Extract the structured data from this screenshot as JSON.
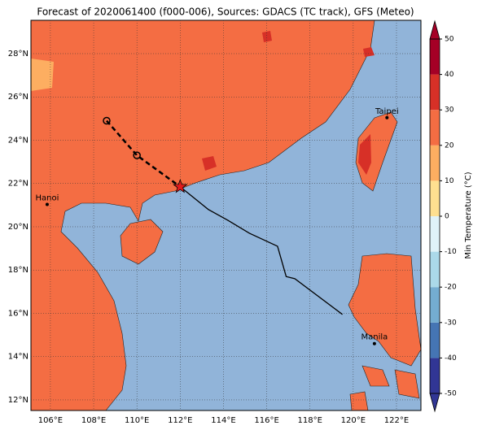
{
  "chart_data": {
    "type": "map",
    "title": "Forecast of 2020061400 (f000-006), Sources: GDACS (TC track), GFS (Meteo)",
    "xlim": [
      105.1,
      123.13
    ],
    "ylim": [
      11.51,
      29.54
    ],
    "xticks": [
      {
        "value": 106,
        "label": "106°E"
      },
      {
        "value": 108,
        "label": "108°E"
      },
      {
        "value": 110,
        "label": "110°E"
      },
      {
        "value": 112,
        "label": "112°E"
      },
      {
        "value": 114,
        "label": "114°E"
      },
      {
        "value": 116,
        "label": "116°E"
      },
      {
        "value": 118,
        "label": "118°E"
      },
      {
        "value": 120,
        "label": "120°E"
      },
      {
        "value": 122,
        "label": "122°E"
      }
    ],
    "yticks": [
      {
        "value": 12,
        "label": "12°N"
      },
      {
        "value": 14,
        "label": "14°N"
      },
      {
        "value": 16,
        "label": "16°N"
      },
      {
        "value": 18,
        "label": "18°N"
      },
      {
        "value": 20,
        "label": "20°N"
      },
      {
        "value": 22,
        "label": "22°N"
      },
      {
        "value": 24,
        "label": "24°N"
      },
      {
        "value": 26,
        "label": "26°N"
      },
      {
        "value": 28,
        "label": "28°N"
      }
    ],
    "grid": true,
    "colorbar": {
      "label": "Min Temperature (°C)",
      "lim": [
        -50,
        50
      ],
      "ticks": [
        -50,
        -40,
        -30,
        -20,
        -10,
        0,
        10,
        20,
        30,
        40,
        50
      ],
      "colors": [
        "#313695",
        "#4575b4",
        "#74add1",
        "#abd9e9",
        "#e0f3f8",
        "#fee090",
        "#fdae61",
        "#f46d43",
        "#d73027",
        "#a50026"
      ]
    },
    "cities": [
      {
        "name": "Hanoi",
        "lon": 105.85,
        "lat": 21.03
      },
      {
        "name": "Taipei",
        "lon": 121.56,
        "lat": 25.04
      },
      {
        "name": "Manila",
        "lon": 120.98,
        "lat": 14.6
      }
    ],
    "past_track": {
      "lon": [
        108.6,
        110.0,
        112.0
      ],
      "lat": [
        24.9,
        23.3,
        21.85
      ]
    },
    "forecast_track": {
      "lon": [
        112.0,
        113.3,
        114.2,
        115.2,
        116.5,
        116.9,
        117.3,
        119.5
      ],
      "lat": [
        21.85,
        20.8,
        20.3,
        19.7,
        19.1,
        17.7,
        17.6,
        15.95
      ]
    }
  }
}
